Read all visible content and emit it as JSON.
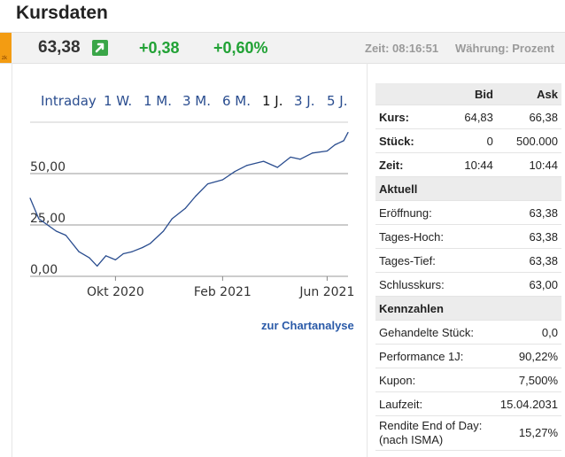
{
  "page_title": "Kursdaten",
  "quote": {
    "price": "63,38",
    "change_abs": "+0,38",
    "change_pct": "+0,60%",
    "time": "Zeit: 08:16:51",
    "currency": "Währung: Prozent",
    "badge": "zk",
    "colors": {
      "positive": "#22a236",
      "badge": "#f39c12"
    }
  },
  "chart": {
    "tabs": [
      "Intraday",
      "1 W.",
      "1 M.",
      "3 M.",
      "6 M.",
      "1 J.",
      "3 J.",
      "5 J."
    ],
    "active_tab": "1 J.",
    "link": "zur Chartanalyse"
  },
  "chart_data": {
    "type": "line",
    "xlabel": "",
    "ylabel": "",
    "ylim": [
      0,
      75
    ],
    "yticks": [
      "0,00",
      "25,00",
      "50,00"
    ],
    "xticks": [
      "Okt 2020",
      "Feb 2021",
      "Jun 2021"
    ],
    "grid": true,
    "series": [
      {
        "x": [
          "2020-06-25",
          "2020-07-05",
          "2020-07-15",
          "2020-07-25",
          "2020-08-05",
          "2020-08-20",
          "2020-09-01",
          "2020-09-10",
          "2020-09-20",
          "2020-10-01",
          "2020-10-10",
          "2020-10-20",
          "2020-11-01",
          "2020-11-10",
          "2020-11-25",
          "2020-12-05",
          "2020-12-20",
          "2021-01-01",
          "2021-01-15",
          "2021-02-01",
          "2021-02-15",
          "2021-03-01",
          "2021-03-20",
          "2021-04-05",
          "2021-04-20",
          "2021-05-01",
          "2021-05-15",
          "2021-06-01",
          "2021-06-10",
          "2021-06-20",
          "2021-06-25"
        ],
        "values": [
          38,
          28,
          25,
          22,
          20,
          12,
          9,
          5,
          10,
          8,
          11,
          12,
          14,
          16,
          22,
          28,
          33,
          39,
          45,
          47,
          51,
          54,
          56,
          53,
          58,
          57,
          60,
          61,
          64,
          66,
          70
        ]
      }
    ]
  },
  "table": {
    "head": [
      "Bid",
      "Ask"
    ],
    "top_rows": [
      {
        "label": "Kurs:",
        "bid": "64,83",
        "ask": "66,38"
      },
      {
        "label": "Stück:",
        "bid": "0",
        "ask": "500.000"
      },
      {
        "label": "Zeit:",
        "bid": "10:44",
        "ask": "10:44"
      }
    ],
    "sections": [
      {
        "title": "Aktuell",
        "rows": [
          {
            "label": "Eröffnung:",
            "value": "63,38"
          },
          {
            "label": "Tages-Hoch:",
            "value": "63,38"
          },
          {
            "label": "Tages-Tief:",
            "value": "63,38"
          },
          {
            "label": "Schlusskurs:",
            "value": "63,00"
          }
        ]
      },
      {
        "title": "Kennzahlen",
        "rows": [
          {
            "label": "Gehandelte Stück:",
            "value": "0,0"
          },
          {
            "label": "Performance 1J:",
            "value": "90,22%"
          },
          {
            "label": "Kupon:",
            "value": "7,500%"
          },
          {
            "label": "Laufzeit:",
            "value": "15.04.2031"
          },
          {
            "label": "Rendite End of Day:(nach ISMA)",
            "value": "15,27%"
          }
        ]
      }
    ]
  }
}
